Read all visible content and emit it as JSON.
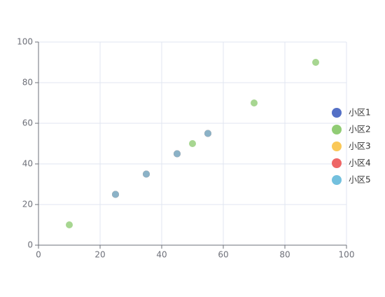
{
  "chart_data": {
    "type": "scatter",
    "xlim": [
      0,
      100
    ],
    "xticks": [
      0,
      20,
      40,
      60,
      80,
      100
    ],
    "ylim": [
      0,
      100
    ],
    "yticks": [
      0,
      20,
      40,
      60,
      80,
      100
    ],
    "grid": true,
    "legend": "right",
    "series": [
      {
        "name": "小区1",
        "color": "#5470c6",
        "x": [
          25,
          35,
          45,
          55
        ],
        "values": [
          25,
          35,
          45,
          55
        ]
      },
      {
        "name": "小区2",
        "color": "#91cc75",
        "x": [
          10,
          50,
          70,
          90
        ],
        "values": [
          10,
          50,
          70,
          90
        ]
      },
      {
        "name": "小区3",
        "color": "#fac858",
        "x": [
          25,
          35,
          45,
          55
        ],
        "values": [
          25,
          35,
          45,
          55
        ]
      },
      {
        "name": "小区4",
        "color": "#ee6666",
        "x": [
          25,
          35,
          45,
          55
        ],
        "values": [
          25,
          35,
          45,
          55
        ]
      },
      {
        "name": "小区5",
        "color": "#73c0de",
        "x": [
          25,
          35,
          45,
          55
        ],
        "values": [
          25,
          35,
          45,
          55
        ]
      }
    ]
  }
}
